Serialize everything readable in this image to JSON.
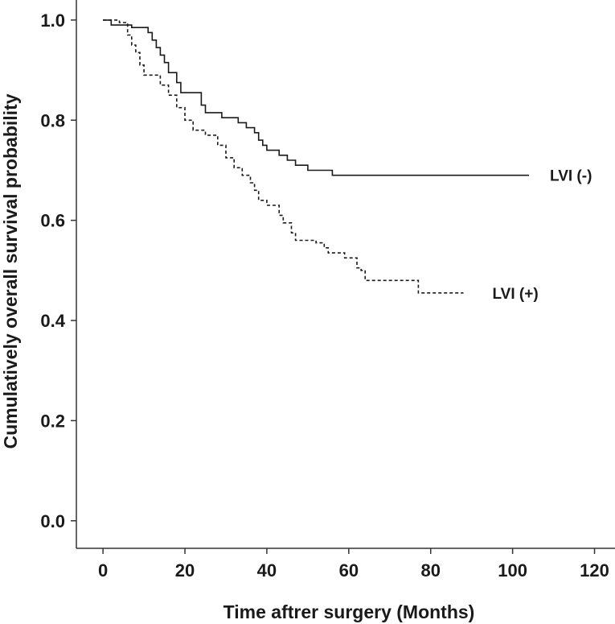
{
  "chart_data": {
    "type": "line",
    "title": "",
    "xlabel": "Time aftrer surgery (Months)",
    "ylabel": "Cumulatively overall survival probability",
    "xlim": [
      -6.5,
      125
    ],
    "ylim": [
      -0.055,
      1.04
    ],
    "xticks": [
      0,
      20,
      40,
      60,
      80,
      100,
      120
    ],
    "yticks": [
      0.0,
      0.2,
      0.4,
      0.6,
      0.8,
      1.0
    ],
    "ytick_labels": [
      "0.0",
      "0.2",
      "0.4",
      "0.6",
      "0.8",
      "1.0"
    ],
    "xtick_labels": [
      "0",
      "20",
      "40",
      "60",
      "80",
      "100",
      "120"
    ],
    "grid": false,
    "series": [
      {
        "name": "LVI (-)",
        "style": "solid",
        "color": "#1a1a1a",
        "label": "LVI (-)",
        "steps": [
          [
            0,
            1.0
          ],
          [
            2,
            0.99
          ],
          [
            7,
            0.985
          ],
          [
            11,
            0.975
          ],
          [
            12,
            0.96
          ],
          [
            13,
            0.945
          ],
          [
            14,
            0.93
          ],
          [
            15,
            0.915
          ],
          [
            16,
            0.895
          ],
          [
            18,
            0.875
          ],
          [
            19,
            0.855
          ],
          [
            24,
            0.83
          ],
          [
            25,
            0.815
          ],
          [
            29,
            0.805
          ],
          [
            33,
            0.795
          ],
          [
            35,
            0.785
          ],
          [
            37,
            0.775
          ],
          [
            38,
            0.76
          ],
          [
            39,
            0.75
          ],
          [
            40,
            0.74
          ],
          [
            43,
            0.73
          ],
          [
            45,
            0.72
          ],
          [
            47,
            0.71
          ],
          [
            50,
            0.7
          ],
          [
            56,
            0.69
          ],
          [
            104,
            0.69
          ]
        ]
      },
      {
        "name": "LVI (+)",
        "style": "dashed",
        "color": "#1a1a1a",
        "label": "LVI (+)",
        "steps": [
          [
            0,
            1.0
          ],
          [
            4,
            0.995
          ],
          [
            6,
            0.97
          ],
          [
            7,
            0.95
          ],
          [
            8,
            0.935
          ],
          [
            9,
            0.91
          ],
          [
            10,
            0.89
          ],
          [
            14,
            0.87
          ],
          [
            16,
            0.85
          ],
          [
            18,
            0.825
          ],
          [
            20,
            0.8
          ],
          [
            22,
            0.78
          ],
          [
            25,
            0.77
          ],
          [
            28,
            0.75
          ],
          [
            30,
            0.725
          ],
          [
            32,
            0.705
          ],
          [
            34,
            0.69
          ],
          [
            36,
            0.675
          ],
          [
            37,
            0.66
          ],
          [
            38,
            0.64
          ],
          [
            40,
            0.63
          ],
          [
            43,
            0.61
          ],
          [
            44,
            0.595
          ],
          [
            46,
            0.575
          ],
          [
            47,
            0.56
          ],
          [
            52,
            0.555
          ],
          [
            54,
            0.545
          ],
          [
            55,
            0.535
          ],
          [
            59,
            0.525
          ],
          [
            62,
            0.505
          ],
          [
            63,
            0.5
          ],
          [
            64,
            0.48
          ],
          [
            77,
            0.455
          ],
          [
            88,
            0.455
          ]
        ]
      }
    ]
  }
}
